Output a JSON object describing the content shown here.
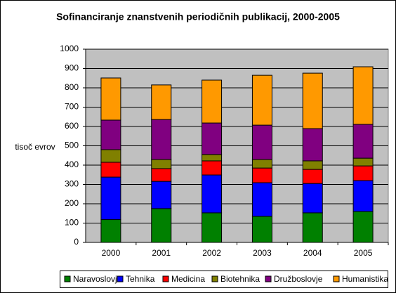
{
  "chart_data": {
    "type": "stacked_bar",
    "title": "Sofinanciranje znanstvenih periodičnih publikacij, 2000-2005",
    "y_label": "tisoč evrov",
    "categories": [
      "2000",
      "2001",
      "2002",
      "2003",
      "2004",
      "2005"
    ],
    "series": [
      {
        "name": "Naravoslovje",
        "color": "#008000",
        "values": [
          118,
          175,
          153,
          135,
          153,
          160
        ]
      },
      {
        "name": "Tehnika",
        "color": "#0000ff",
        "values": [
          220,
          141,
          196,
          174,
          152,
          160
        ]
      },
      {
        "name": "Medicina",
        "color": "#ff0000",
        "values": [
          77,
          66,
          73,
          76,
          73,
          76
        ]
      },
      {
        "name": "Biotehnika",
        "color": "#808000",
        "values": [
          65,
          47,
          33,
          44,
          44,
          40
        ]
      },
      {
        "name": "Družboslovje",
        "color": "#800080",
        "values": [
          153,
          207,
          163,
          178,
          167,
          175
        ]
      },
      {
        "name": "Humanistika",
        "color": "#ff9900",
        "values": [
          218,
          179,
          222,
          258,
          287,
          298
        ]
      }
    ],
    "ylim": [
      0,
      1000
    ],
    "yticks": [
      0,
      100,
      200,
      300,
      400,
      500,
      600,
      700,
      800,
      900,
      1000
    ],
    "grid": true
  }
}
